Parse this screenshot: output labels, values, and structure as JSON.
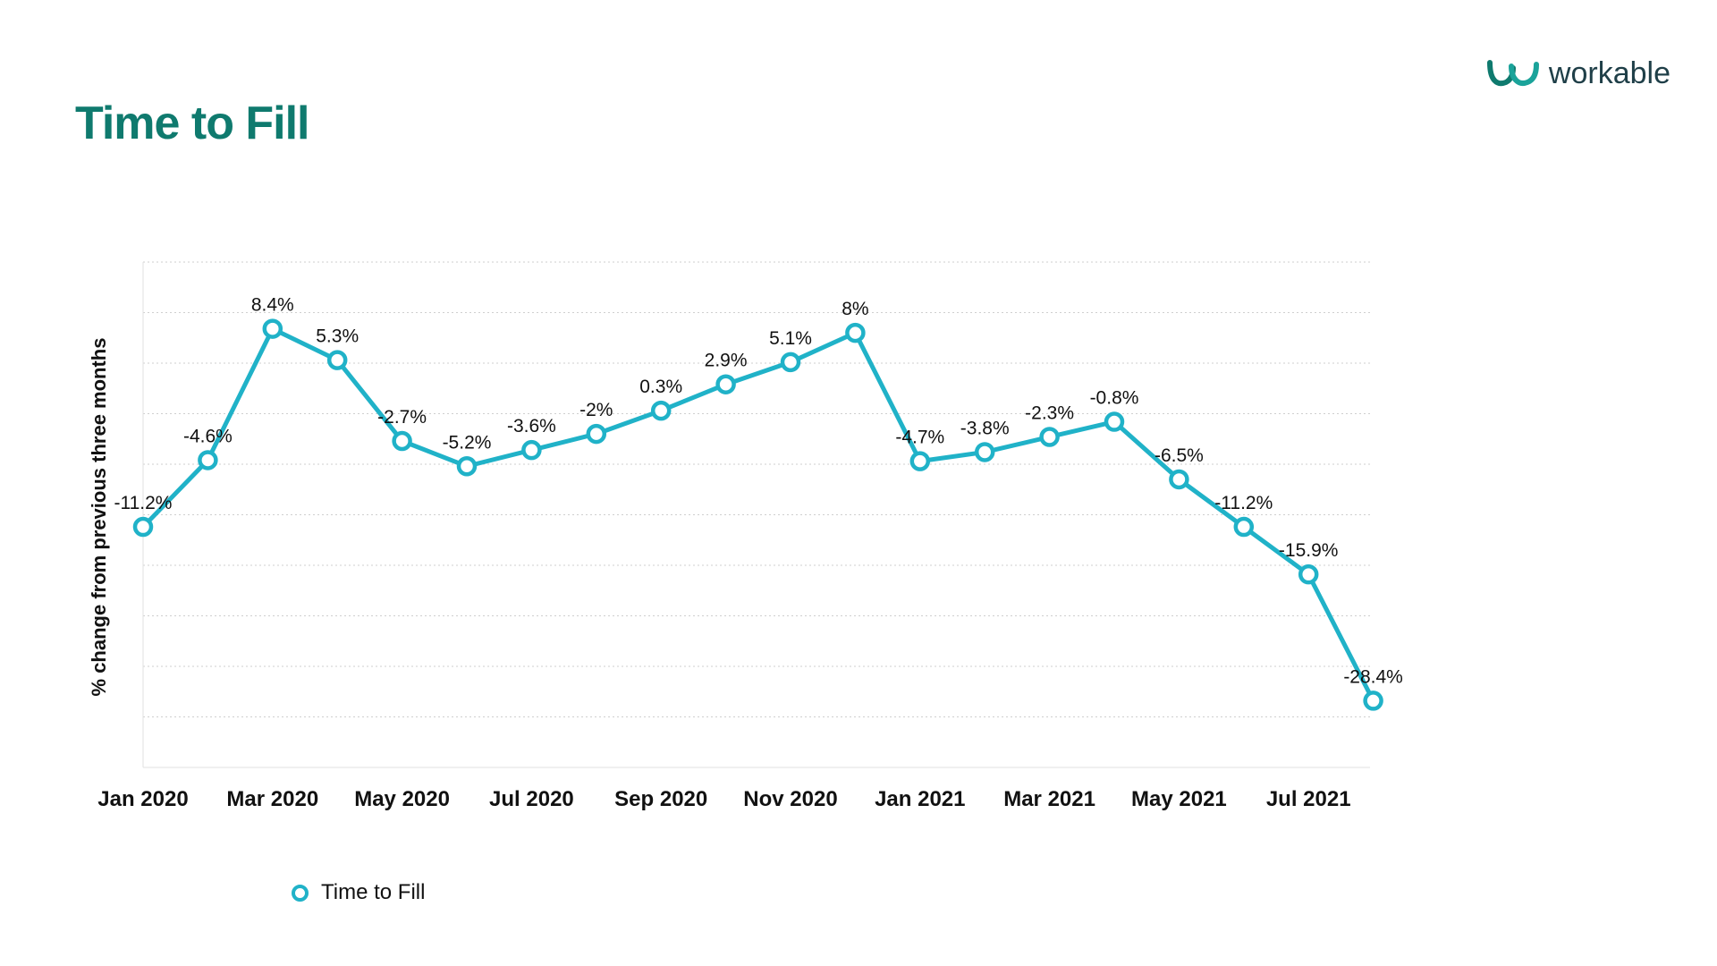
{
  "header": {
    "title": "Time to Fill",
    "logo_text": "workable"
  },
  "colors": {
    "title": "#0f7a6e",
    "line": "#20b2c8",
    "logo": "#1f3f48"
  },
  "chart_data": {
    "type": "line",
    "title": "Time to Fill",
    "ylabel": "% change from previous three months",
    "xlabel": "",
    "x": [
      "Jan 2020",
      "Feb 2020",
      "Mar 2020",
      "Apr 2020",
      "May 2020",
      "Jun 2020",
      "Jul 2020",
      "Aug 2020",
      "Sep 2020",
      "Oct 2020",
      "Nov 2020",
      "Dec 2020",
      "Jan 2021",
      "Feb 2021",
      "Mar 2021",
      "Apr 2021",
      "May 2021",
      "Jun 2021",
      "Jul 2021",
      "Aug 2021"
    ],
    "x_tick_labels": [
      "Jan 2020",
      "Mar 2020",
      "May 2020",
      "Jul 2020",
      "Sep 2020",
      "Nov 2020",
      "Jan 2021",
      "Mar 2021",
      "May 2021",
      "Jul 2021"
    ],
    "series": [
      {
        "name": "Time to Fill",
        "values": [
          -11.2,
          -4.6,
          8.4,
          5.3,
          -2.7,
          -5.2,
          -3.6,
          -2,
          0.3,
          2.9,
          5.1,
          8,
          -4.7,
          -3.8,
          -2.3,
          -0.8,
          -6.5,
          -11.2,
          -15.9,
          -28.4
        ],
        "labels": [
          "-11.2%",
          "-4.6%",
          "8.4%",
          "5.3%",
          "-2.7%",
          "-5.2%",
          "-3.6%",
          "-2%",
          "0.3%",
          "2.9%",
          "5.1%",
          "8%",
          "-4.7%",
          "-3.8%",
          "-2.3%",
          "-0.8%",
          "-6.5%",
          "-11.2%",
          "-15.9%",
          "-28.4%"
        ]
      }
    ],
    "ylim": [
      -35,
      15
    ],
    "grid": true,
    "legend": "bottom-left",
    "y_tick_labels_shown": false
  }
}
